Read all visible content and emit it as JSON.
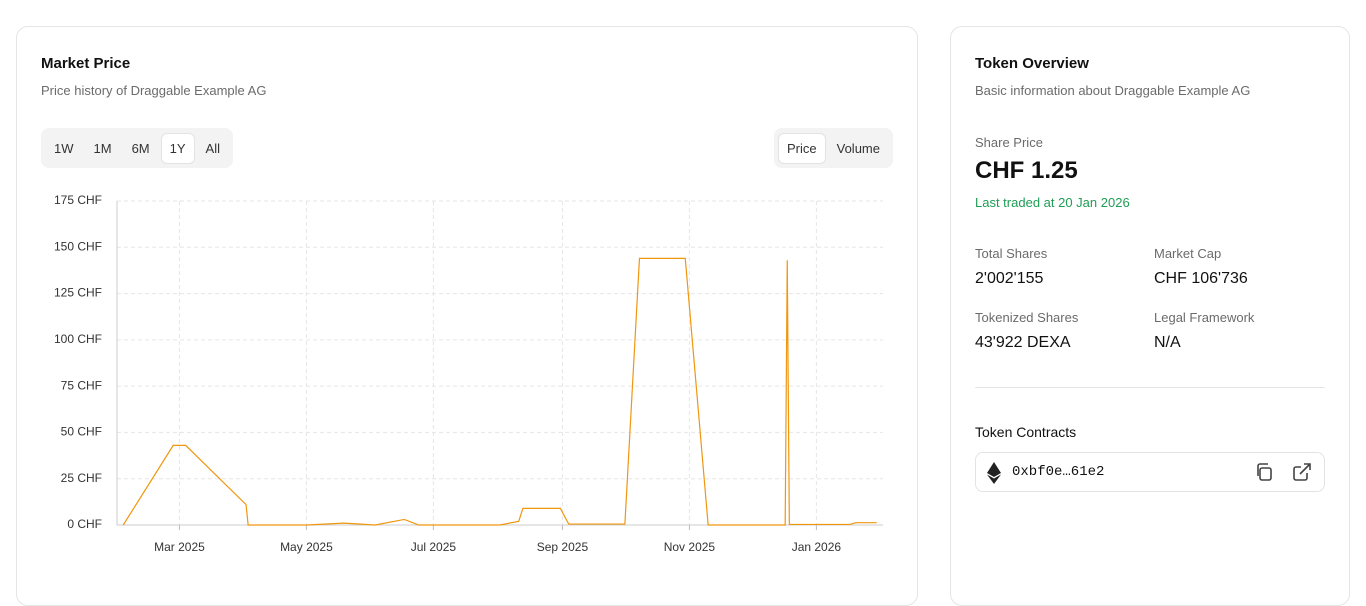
{
  "chart_data": {
    "type": "line",
    "title": "Market Price",
    "subtitle": "Price history of Draggable Example AG",
    "ranges": [
      "1W",
      "1M",
      "6M",
      "1Y",
      "All"
    ],
    "active_range": "1Y",
    "metrics": [
      "Price",
      "Volume"
    ],
    "active_metric": "Price",
    "x": [
      "2025-02-02",
      "2025-02-26",
      "2025-03-04",
      "2025-04-02",
      "2025-04-03",
      "2025-05-01",
      "2025-05-19",
      "2025-06-03",
      "2025-06-17",
      "2025-06-24",
      "2025-08-02",
      "2025-08-11",
      "2025-08-13",
      "2025-08-31",
      "2025-09-04",
      "2025-10-01",
      "2025-10-08",
      "2025-10-30",
      "2025-11-10",
      "2025-12-17",
      "2025-12-18",
      "2025-12-19",
      "2026-01-17",
      "2026-01-20",
      "2026-01-30"
    ],
    "values": [
      0,
      43,
      43,
      11,
      0,
      0,
      1,
      0,
      3,
      0,
      0,
      2,
      9,
      9,
      0.5,
      0.5,
      144,
      144,
      0,
      0,
      143,
      0.3,
      0.3,
      1.25,
      1.25
    ],
    "color": "#f0960f",
    "xlim": [
      "2025-01-30",
      "2026-02-02"
    ],
    "xticks": [
      {
        "value": "2025-03-01",
        "label": "Mar 2025"
      },
      {
        "value": "2025-05-01",
        "label": "May 2025"
      },
      {
        "value": "2025-07-01",
        "label": "Jul 2025"
      },
      {
        "value": "2025-09-01",
        "label": "Sep 2025"
      },
      {
        "value": "2025-11-01",
        "label": "Nov 2025"
      },
      {
        "value": "2026-01-01",
        "label": "Jan 2026"
      }
    ],
    "ylim": [
      0,
      175
    ],
    "yticks": [
      {
        "value": 0,
        "label": "0 CHF"
      },
      {
        "value": 25,
        "label": "25 CHF"
      },
      {
        "value": 50,
        "label": "50 CHF"
      },
      {
        "value": 75,
        "label": "75 CHF"
      },
      {
        "value": 100,
        "label": "100 CHF"
      },
      {
        "value": 125,
        "label": "125 CHF"
      },
      {
        "value": 150,
        "label": "150 CHF"
      },
      {
        "value": 175,
        "label": "175 CHF"
      }
    ],
    "grid": true
  },
  "overview": {
    "title": "Token Overview",
    "subtitle": "Basic information about Draggable Example AG",
    "share_price_label": "Share Price",
    "share_price": "CHF 1.25",
    "last_traded": "Last traded at 20 Jan 2026",
    "stats": [
      {
        "label": "Total Shares",
        "value": "2'002'155"
      },
      {
        "label": "Market Cap",
        "value": "CHF 106'736"
      },
      {
        "label": "Tokenized Shares",
        "value": "43'922 DEXA"
      },
      {
        "label": "Legal Framework",
        "value": "N/A"
      }
    ],
    "contracts_title": "Token Contracts",
    "contract_address": "0xbf0e…61e2"
  }
}
